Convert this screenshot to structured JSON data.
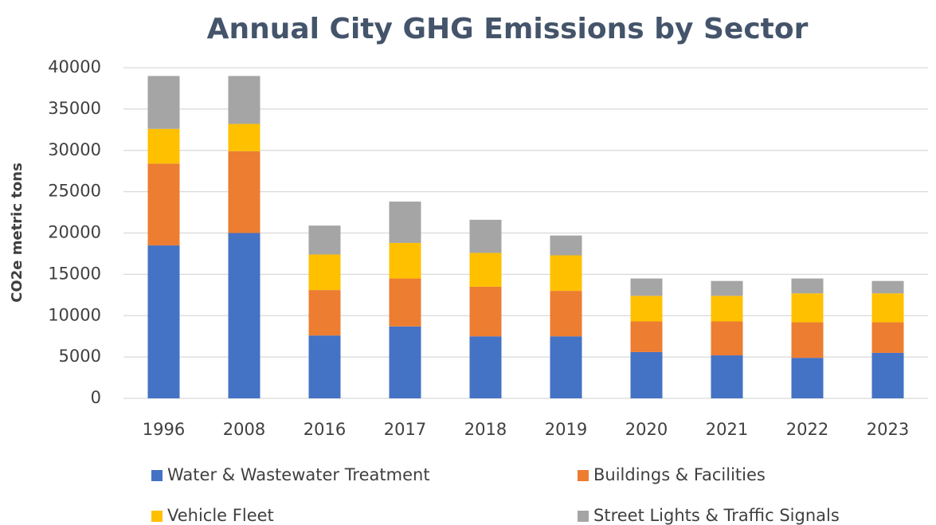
{
  "chart_data": {
    "type": "stacked_bar",
    "title": "Annual City GHG Emissions by Sector",
    "y_label": "CO2e metric tons",
    "categories": [
      "1996",
      "2008",
      "2016",
      "2017",
      "2018",
      "2019",
      "2020",
      "2021",
      "2022",
      "2023"
    ],
    "series": [
      {
        "name": "Water & Wastewater Treatment",
        "color": "#4472c4",
        "values": [
          18500,
          20000,
          7600,
          8700,
          7500,
          7500,
          5600,
          5200,
          4900,
          5500
        ]
      },
      {
        "name": "Buildings & Facilities",
        "color": "#ed7d31",
        "values": [
          9900,
          9900,
          5500,
          5800,
          6000,
          5500,
          3700,
          4100,
          4300,
          3700
        ]
      },
      {
        "name": "Vehicle Fleet",
        "color": "#ffc000",
        "values": [
          4200,
          3300,
          4300,
          4300,
          4100,
          4300,
          3100,
          3100,
          3500,
          3500
        ]
      },
      {
        "name": "Street Lights & Traffic Signals",
        "color": "#a5a5a5",
        "values": [
          6400,
          5800,
          3500,
          5000,
          4000,
          2400,
          2100,
          1800,
          1800,
          1500
        ]
      }
    ],
    "ylim": [
      0,
      40000
    ],
    "yticks": [
      0,
      5000,
      10000,
      15000,
      20000,
      25000,
      30000,
      35000,
      40000
    ],
    "grid": true,
    "legend": "bottom"
  }
}
